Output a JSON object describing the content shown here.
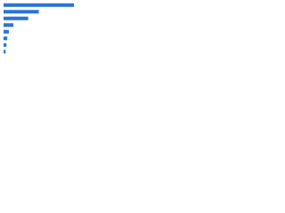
{
  "chart_data": {
    "type": "bar",
    "orientation": "horizontal",
    "categories": [
      null,
      null,
      null,
      null,
      null,
      null,
      null,
      null
    ],
    "values": [
      86,
      43,
      30,
      12,
      6.5,
      4.5,
      3.5,
      2.5
    ],
    "color": "#2a74d6",
    "xlim": [
      0,
      100
    ]
  }
}
